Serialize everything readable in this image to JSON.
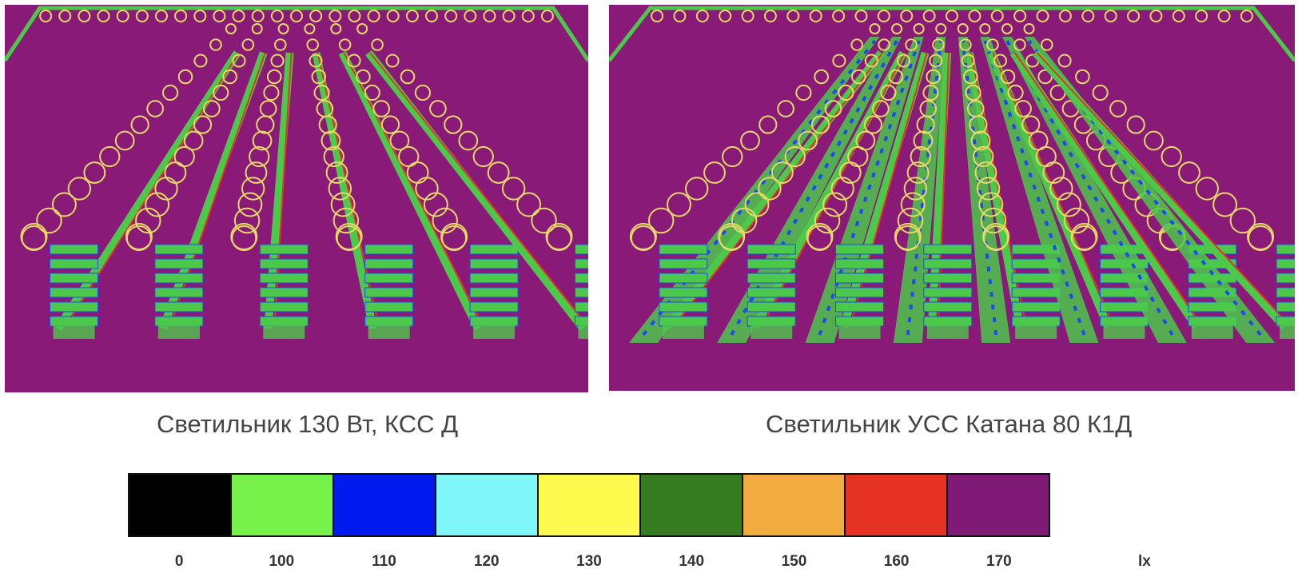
{
  "captions": {
    "left": "Светильник 130 Вт, КСС Д",
    "right": "Светильник УСС Катана 80 К1Д"
  },
  "legend": {
    "unit": "lx",
    "levels": [
      {
        "label": "0",
        "color": "#000000"
      },
      {
        "label": "100",
        "color": "#77f24a"
      },
      {
        "label": "110",
        "color": "#0019ee"
      },
      {
        "label": "120",
        "color": "#7ff7fa"
      },
      {
        "label": "130",
        "color": "#fefb4e"
      },
      {
        "label": "140",
        "color": "#367d21"
      },
      {
        "label": "150",
        "color": "#f2ab3f"
      },
      {
        "label": "160",
        "color": "#e63223"
      },
      {
        "label": "170",
        "color": "#7f1a77"
      }
    ]
  },
  "render": {
    "floor_color": "#8a1a78",
    "shelf_color": "#4cc84a",
    "lamp_color": "#e8d866",
    "hot_color": "#e63223",
    "cool_color": "#1a4cee"
  }
}
